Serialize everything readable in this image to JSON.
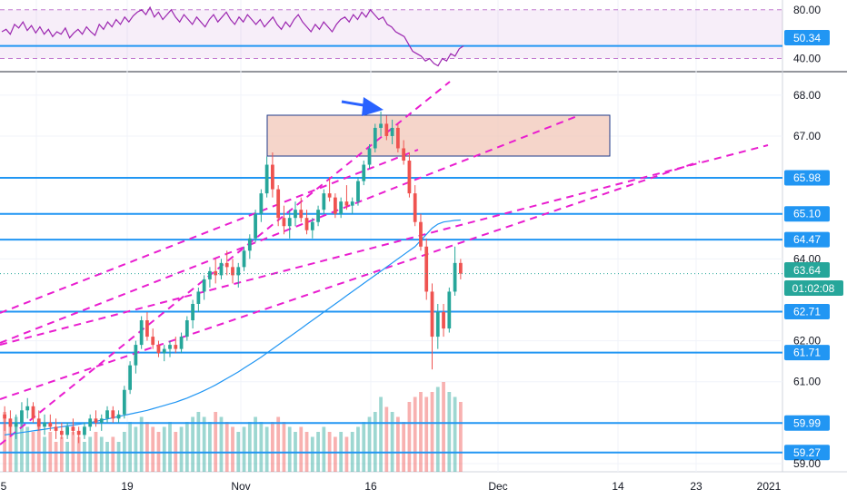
{
  "chart_data": {
    "type": "candlestick",
    "price_axis": {
      "ticks": [
        "68.00",
        "67.00",
        "65.98",
        "65.10",
        "64.47",
        "64.00",
        "63.64",
        "62.71",
        "62.00",
        "61.71",
        "61.00",
        "59.99",
        "59.27",
        "59.00"
      ],
      "range": [
        58.8,
        68.55
      ]
    },
    "rsi_axis": {
      "ticks": [
        "80.00",
        "50.34",
        "40.00"
      ],
      "range": [
        30,
        88
      ],
      "band": [
        40,
        80
      ]
    },
    "time_axis": {
      "labels": [
        "5",
        "19",
        "Nov",
        "16",
        "Dec",
        "14",
        "23",
        "2021"
      ]
    },
    "horizontal_levels": [
      65.98,
      65.1,
      64.47,
      62.71,
      61.71,
      59.99,
      59.27
    ],
    "last_price": "63.64",
    "countdown": "01:02:08",
    "rsi_value": "50.34",
    "rsi_series": [
      62,
      64,
      60,
      68,
      65,
      70,
      63,
      67,
      61,
      66,
      60,
      64,
      58,
      62,
      60,
      65,
      57,
      61,
      64,
      60,
      66,
      62,
      59,
      68,
      64,
      70,
      66,
      72,
      68,
      74,
      70,
      75,
      78,
      80,
      76,
      82,
      74,
      78,
      72,
      76,
      80,
      74,
      70,
      76,
      72,
      68,
      74,
      70,
      66,
      72,
      76,
      70,
      74,
      78,
      72,
      68,
      74,
      70,
      76,
      72,
      68,
      72,
      66,
      70,
      74,
      68,
      64,
      70,
      66,
      72,
      76,
      70,
      66,
      62,
      68,
      64,
      70,
      66,
      62,
      68,
      72,
      74,
      70,
      76,
      72,
      78,
      74,
      80,
      76,
      72,
      74,
      68,
      66,
      62,
      60,
      58,
      52,
      46,
      44,
      42,
      38,
      40,
      36,
      34,
      40,
      38,
      44,
      42,
      48,
      50.34
    ],
    "candles": [
      [
        60.2,
        60.4,
        59.8,
        60.1
      ],
      [
        60.1,
        60.3,
        59.7,
        59.9
      ],
      [
        59.9,
        60.2,
        59.6,
        60.0
      ],
      [
        60.0,
        60.5,
        59.9,
        60.3
      ],
      [
        60.3,
        60.6,
        60.1,
        60.4
      ],
      [
        60.4,
        60.5,
        60.0,
        60.1
      ],
      [
        60.1,
        60.3,
        59.8,
        59.9
      ],
      [
        59.9,
        60.2,
        59.7,
        60.0
      ],
      [
        60.0,
        60.2,
        59.8,
        59.9
      ],
      [
        59.9,
        60.1,
        59.6,
        59.8
      ],
      [
        59.8,
        60.0,
        59.6,
        59.7
      ],
      [
        59.7,
        60.0,
        59.6,
        59.9
      ],
      [
        59.9,
        60.1,
        59.7,
        59.8
      ],
      [
        59.8,
        59.9,
        59.5,
        59.7
      ],
      [
        59.7,
        60.0,
        59.6,
        59.9
      ],
      [
        59.9,
        60.2,
        59.8,
        60.1
      ],
      [
        60.1,
        60.3,
        59.9,
        60.0
      ],
      [
        60.0,
        60.2,
        59.8,
        60.1
      ],
      [
        60.1,
        60.4,
        60.0,
        60.3
      ],
      [
        60.3,
        60.4,
        60.0,
        60.1
      ],
      [
        60.1,
        60.3,
        60.0,
        60.2
      ],
      [
        60.2,
        60.9,
        60.1,
        60.8
      ],
      [
        60.8,
        61.5,
        60.7,
        61.4
      ],
      [
        61.4,
        62.0,
        61.2,
        61.9
      ],
      [
        61.9,
        62.6,
        61.8,
        62.5
      ],
      [
        62.5,
        62.7,
        62.0,
        62.1
      ],
      [
        62.1,
        62.3,
        61.8,
        61.9
      ],
      [
        61.9,
        62.0,
        61.6,
        61.7
      ],
      [
        61.7,
        61.9,
        61.5,
        61.8
      ],
      [
        61.8,
        62.0,
        61.6,
        61.9
      ],
      [
        61.9,
        62.1,
        61.7,
        61.8
      ],
      [
        61.8,
        62.2,
        61.7,
        62.1
      ],
      [
        62.1,
        62.6,
        62.0,
        62.5
      ],
      [
        62.5,
        63.0,
        62.3,
        62.9
      ],
      [
        62.9,
        63.3,
        62.7,
        63.2
      ],
      [
        63.2,
        63.6,
        63.0,
        63.5
      ],
      [
        63.5,
        63.8,
        63.3,
        63.7
      ],
      [
        63.7,
        64.0,
        63.4,
        63.6
      ],
      [
        63.6,
        64.0,
        63.5,
        63.9
      ],
      [
        63.9,
        64.2,
        63.6,
        63.8
      ],
      [
        63.8,
        64.0,
        63.4,
        63.6
      ],
      [
        63.6,
        63.9,
        63.3,
        63.8
      ],
      [
        63.8,
        64.3,
        63.7,
        64.2
      ],
      [
        64.2,
        64.6,
        64.0,
        64.5
      ],
      [
        64.5,
        65.2,
        64.4,
        65.1
      ],
      [
        65.1,
        65.7,
        64.9,
        65.6
      ],
      [
        65.6,
        66.5,
        65.5,
        66.3
      ],
      [
        66.3,
        66.6,
        65.5,
        65.7
      ],
      [
        65.7,
        65.8,
        64.8,
        65.0
      ],
      [
        65.0,
        65.3,
        64.6,
        64.8
      ],
      [
        64.8,
        65.2,
        64.5,
        65.0
      ],
      [
        65.0,
        65.4,
        64.8,
        65.2
      ],
      [
        65.2,
        65.5,
        64.9,
        65.0
      ],
      [
        65.0,
        65.2,
        64.6,
        64.7
      ],
      [
        64.7,
        65.0,
        64.5,
        64.9
      ],
      [
        64.9,
        65.3,
        64.8,
        65.2
      ],
      [
        65.2,
        65.7,
        65.1,
        65.6
      ],
      [
        65.6,
        66.0,
        65.4,
        65.5
      ],
      [
        65.5,
        65.6,
        65.0,
        65.1
      ],
      [
        65.1,
        65.5,
        65.0,
        65.4
      ],
      [
        65.4,
        65.8,
        65.2,
        65.3
      ],
      [
        65.3,
        65.5,
        65.1,
        65.4
      ],
      [
        65.4,
        66.0,
        65.3,
        65.9
      ],
      [
        65.9,
        66.4,
        65.8,
        66.3
      ],
      [
        66.3,
        66.8,
        66.2,
        66.7
      ],
      [
        66.7,
        67.3,
        66.6,
        67.2
      ],
      [
        67.2,
        67.6,
        67.0,
        67.3
      ],
      [
        67.3,
        67.5,
        66.9,
        67.0
      ],
      [
        67.0,
        67.4,
        66.8,
        67.2
      ],
      [
        67.2,
        67.3,
        66.6,
        66.7
      ],
      [
        66.7,
        66.9,
        66.3,
        66.4
      ],
      [
        66.4,
        66.6,
        65.5,
        65.6
      ],
      [
        65.6,
        65.8,
        64.8,
        64.9
      ],
      [
        64.9,
        65.1,
        64.2,
        64.3
      ],
      [
        64.3,
        64.5,
        63.0,
        63.2
      ],
      [
        63.2,
        63.4,
        61.3,
        62.1
      ],
      [
        62.1,
        62.9,
        61.8,
        62.7
      ],
      [
        62.7,
        62.9,
        62.1,
        62.3
      ],
      [
        62.3,
        63.3,
        62.2,
        63.2
      ],
      [
        63.2,
        64.3,
        63.1,
        63.9
      ],
      [
        63.9,
        64.0,
        63.5,
        63.64
      ]
    ],
    "volumes": [
      0.6,
      0.5,
      0.55,
      0.5,
      0.45,
      0.4,
      0.45,
      0.35,
      0.4,
      0.3,
      0.35,
      0.3,
      0.4,
      0.35,
      0.3,
      0.35,
      0.4,
      0.35,
      0.3,
      0.35,
      0.3,
      0.4,
      0.5,
      0.45,
      0.55,
      0.5,
      0.45,
      0.4,
      0.45,
      0.5,
      0.4,
      0.45,
      0.5,
      0.55,
      0.6,
      0.55,
      0.5,
      0.6,
      0.55,
      0.5,
      0.45,
      0.4,
      0.45,
      0.5,
      0.55,
      0.5,
      0.45,
      0.5,
      0.55,
      0.5,
      0.45,
      0.4,
      0.45,
      0.4,
      0.35,
      0.4,
      0.45,
      0.4,
      0.35,
      0.4,
      0.35,
      0.4,
      0.45,
      0.5,
      0.55,
      0.6,
      0.75,
      0.65,
      0.6,
      0.55,
      0.5,
      0.7,
      0.75,
      0.8,
      0.75,
      0.8,
      0.85,
      0.9,
      0.8,
      0.75,
      0.7
    ],
    "sma_series": [
      59.7,
      59.72,
      59.74,
      59.76,
      59.78,
      59.8,
      59.82,
      59.84,
      59.86,
      59.88,
      59.9,
      59.92,
      59.94,
      59.96,
      59.98,
      60.0,
      60.03,
      60.06,
      60.09,
      60.12,
      60.15,
      60.18,
      60.21,
      60.24,
      60.27,
      60.3,
      60.34,
      60.38,
      60.42,
      60.46,
      60.5,
      60.55,
      60.6,
      60.66,
      60.72,
      60.78,
      60.85,
      60.92,
      61.0,
      61.08,
      61.16,
      61.24,
      61.33,
      61.42,
      61.51,
      61.6,
      61.7,
      61.8,
      61.9,
      62.0,
      62.1,
      62.2,
      62.3,
      62.4,
      62.5,
      62.6,
      62.7,
      62.8,
      62.9,
      63.0,
      63.1,
      63.2,
      63.3,
      63.4,
      63.5,
      63.6,
      63.7,
      63.8,
      63.9,
      64.0,
      64.1,
      64.2,
      64.3,
      64.45,
      64.6,
      64.75,
      64.85,
      64.9,
      64.92,
      64.94,
      64.95
    ],
    "colors": {
      "up": "#26a69a",
      "down": "#ef5350",
      "level": "#2196f3",
      "trend": "#e91ecf",
      "rsi": "#9c27b0",
      "sma": "#2196f3",
      "zone": "#f2c7b8",
      "arrow": "#2962ff"
    }
  }
}
